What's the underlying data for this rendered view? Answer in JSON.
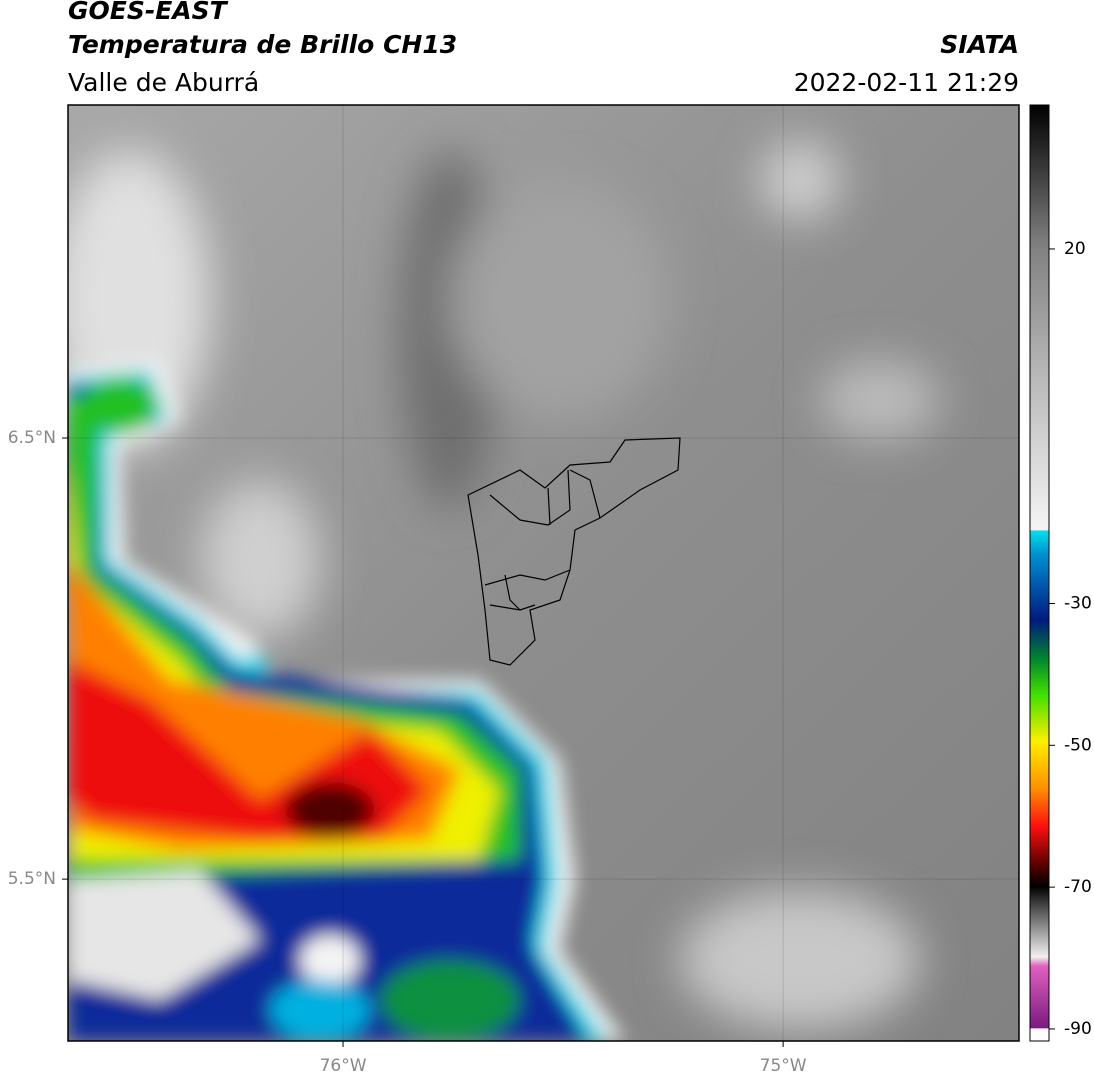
{
  "header": {
    "title": "GOES-EAST",
    "subtitle": "Temperatura de Brillo CH13",
    "region": "Valle de Aburrá",
    "source": "SIATA",
    "datetime": "2022-02-11 21:29"
  },
  "map": {
    "xlim": [
      -76.625,
      -74.464
    ],
    "ylim": [
      5.133,
      7.255
    ],
    "lat_ticks": [
      {
        "value": 6.5,
        "label": "6.5°N"
      },
      {
        "value": 5.5,
        "label": "5.5°N"
      }
    ],
    "lon_ticks": [
      {
        "value": -76,
        "label": "76°W"
      },
      {
        "value": -75,
        "label": "75°W"
      }
    ]
  },
  "colorbar": {
    "lim": [
      -91.7,
      40.3
    ],
    "ticks": [
      20,
      -30,
      -50,
      -70,
      -90
    ]
  }
}
